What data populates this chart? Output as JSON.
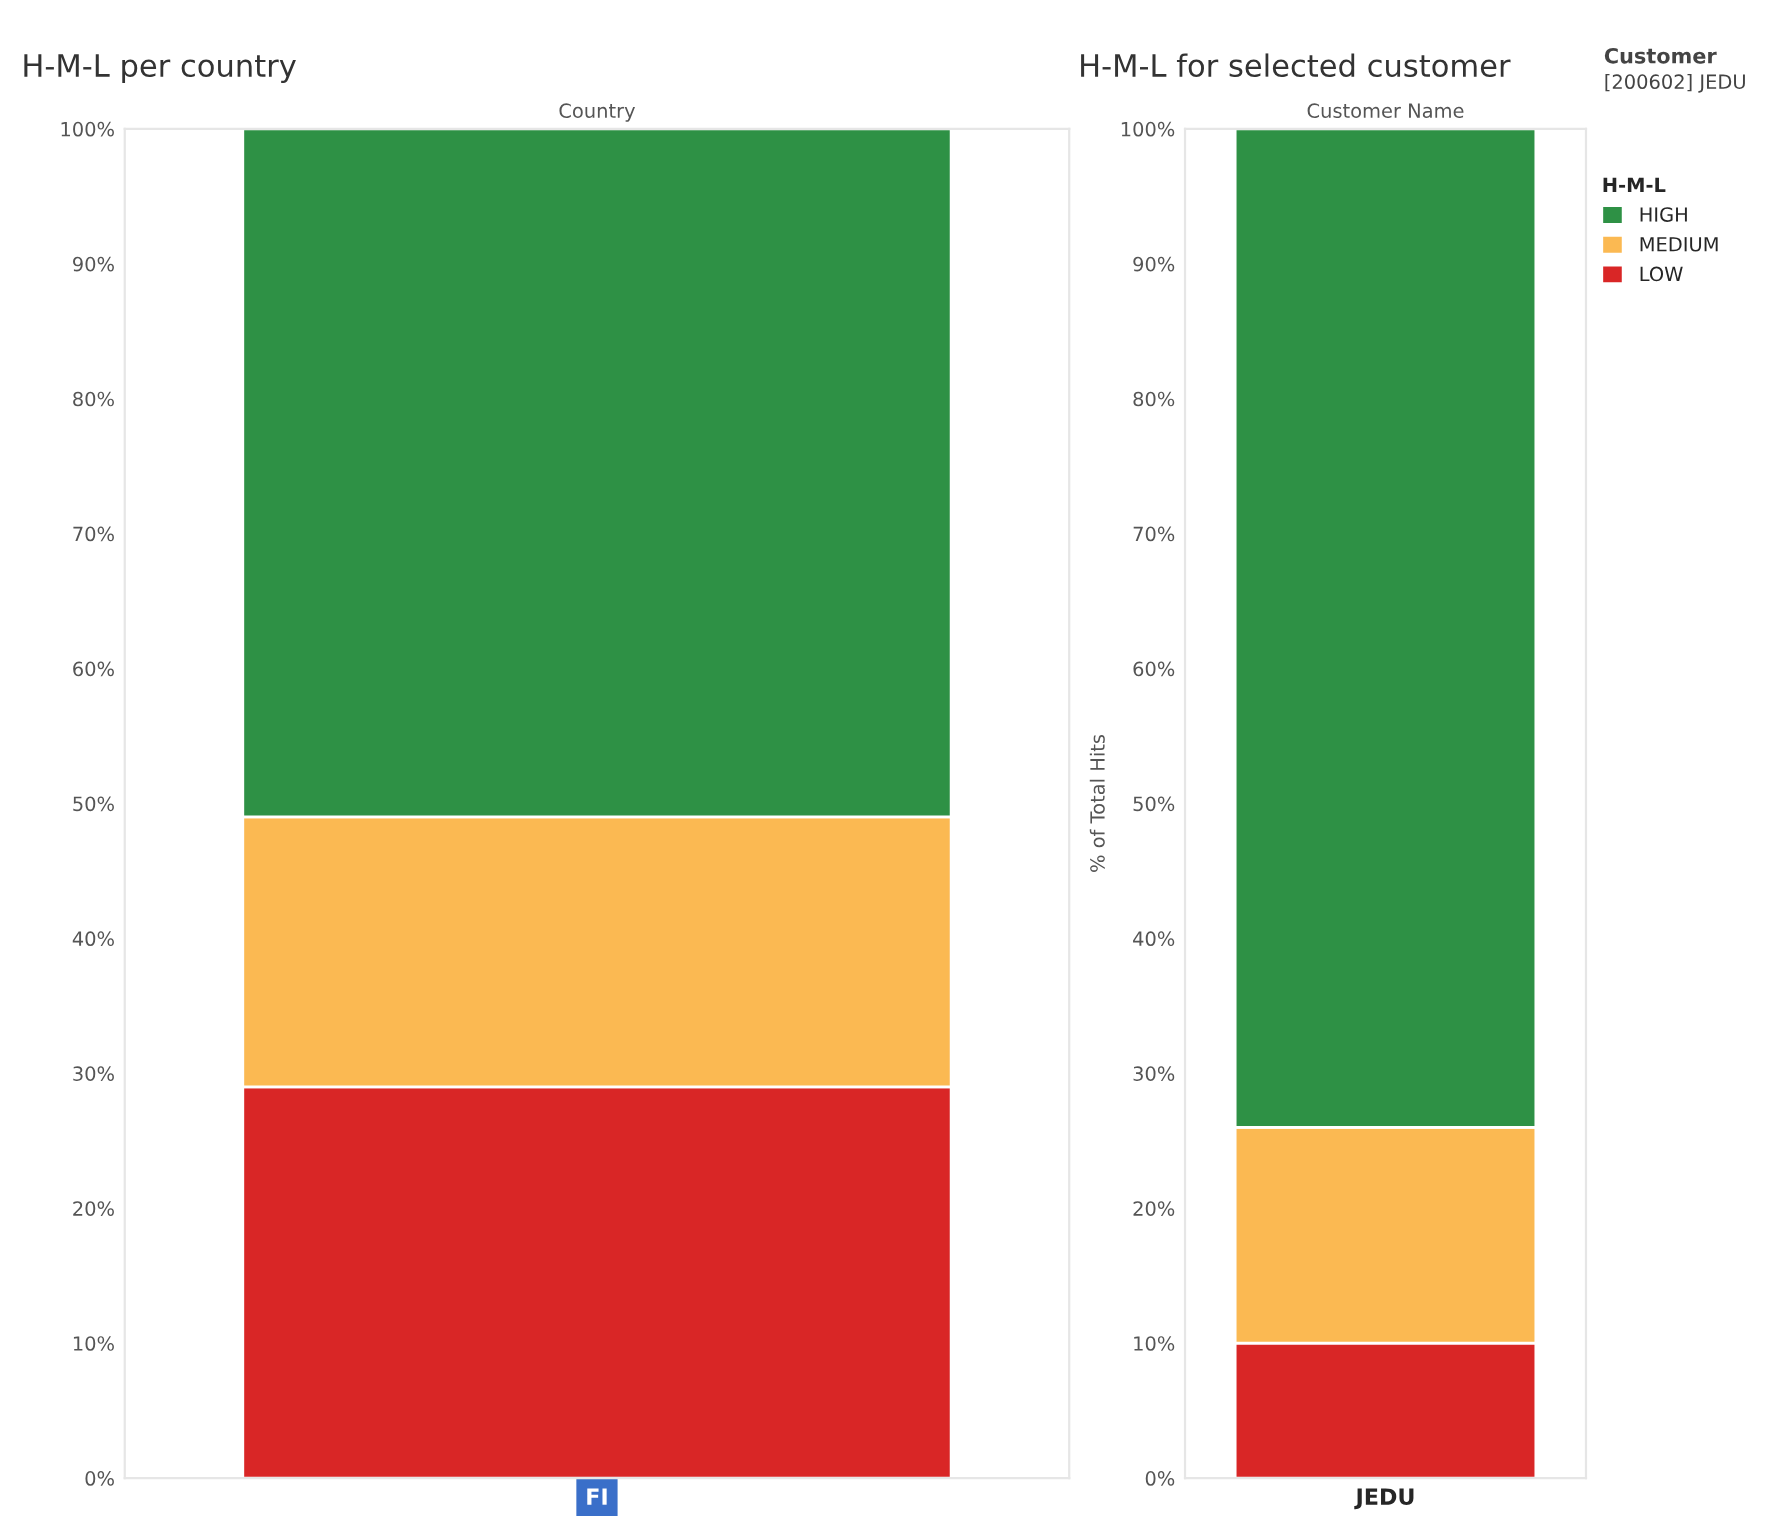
{
  "chart_data": [
    {
      "type": "bar",
      "stacked": true,
      "title": "H-M-L per country",
      "xlabel": "Country",
      "categories": [
        "FI"
      ],
      "ylim": [
        0,
        100
      ],
      "yticks": [
        {
          "value": 0,
          "label": "0%"
        },
        {
          "value": 10,
          "label": "10%"
        },
        {
          "value": 20,
          "label": "20%"
        },
        {
          "value": 30,
          "label": "30%"
        },
        {
          "value": 40,
          "label": "40%"
        },
        {
          "value": 50,
          "label": "50%"
        },
        {
          "value": 60,
          "label": "60%"
        },
        {
          "value": 70,
          "label": "70%"
        },
        {
          "value": 80,
          "label": "80%"
        },
        {
          "value": 90,
          "label": "90%"
        },
        {
          "value": 100,
          "label": "100%"
        }
      ],
      "series": [
        {
          "color": "#d92626",
          "values": [
            29
          ]
        },
        {
          "color": "#fbb952",
          "values": [
            20
          ]
        },
        {
          "color": "#2e9145",
          "values": [
            51
          ]
        }
      ]
    },
    {
      "type": "bar",
      "stacked": true,
      "title": "H-M-L for selected customer",
      "xlabel": "Customer Name",
      "ylabel": "% of Total Hits",
      "categories": [
        "JEDU"
      ],
      "ylim": [
        0,
        100
      ],
      "yticks": [
        {
          "value": 0,
          "label": "0%"
        },
        {
          "value": 10,
          "label": "10%"
        },
        {
          "value": 20,
          "label": "20%"
        },
        {
          "value": 30,
          "label": "30%"
        },
        {
          "value": 40,
          "label": "40%"
        },
        {
          "value": 50,
          "label": "50%"
        },
        {
          "value": 60,
          "label": "60%"
        },
        {
          "value": 70,
          "label": "70%"
        },
        {
          "value": 80,
          "label": "80%"
        },
        {
          "value": 90,
          "label": "90%"
        },
        {
          "value": 100,
          "label": "100%"
        }
      ],
      "legend": "top right",
      "legend_title": "H-M-L",
      "annotations": [
        "Customer",
        "[200602] JEDU"
      ],
      "series": [
        {
          "name": "LOW",
          "color": "#d92626",
          "values": [
            10
          ]
        },
        {
          "name": "MEDIUM",
          "color": "#fbb952",
          "values": [
            16
          ]
        },
        {
          "name": "HIGH",
          "color": "#2e9145",
          "values": [
            74
          ]
        }
      ]
    }
  ]
}
